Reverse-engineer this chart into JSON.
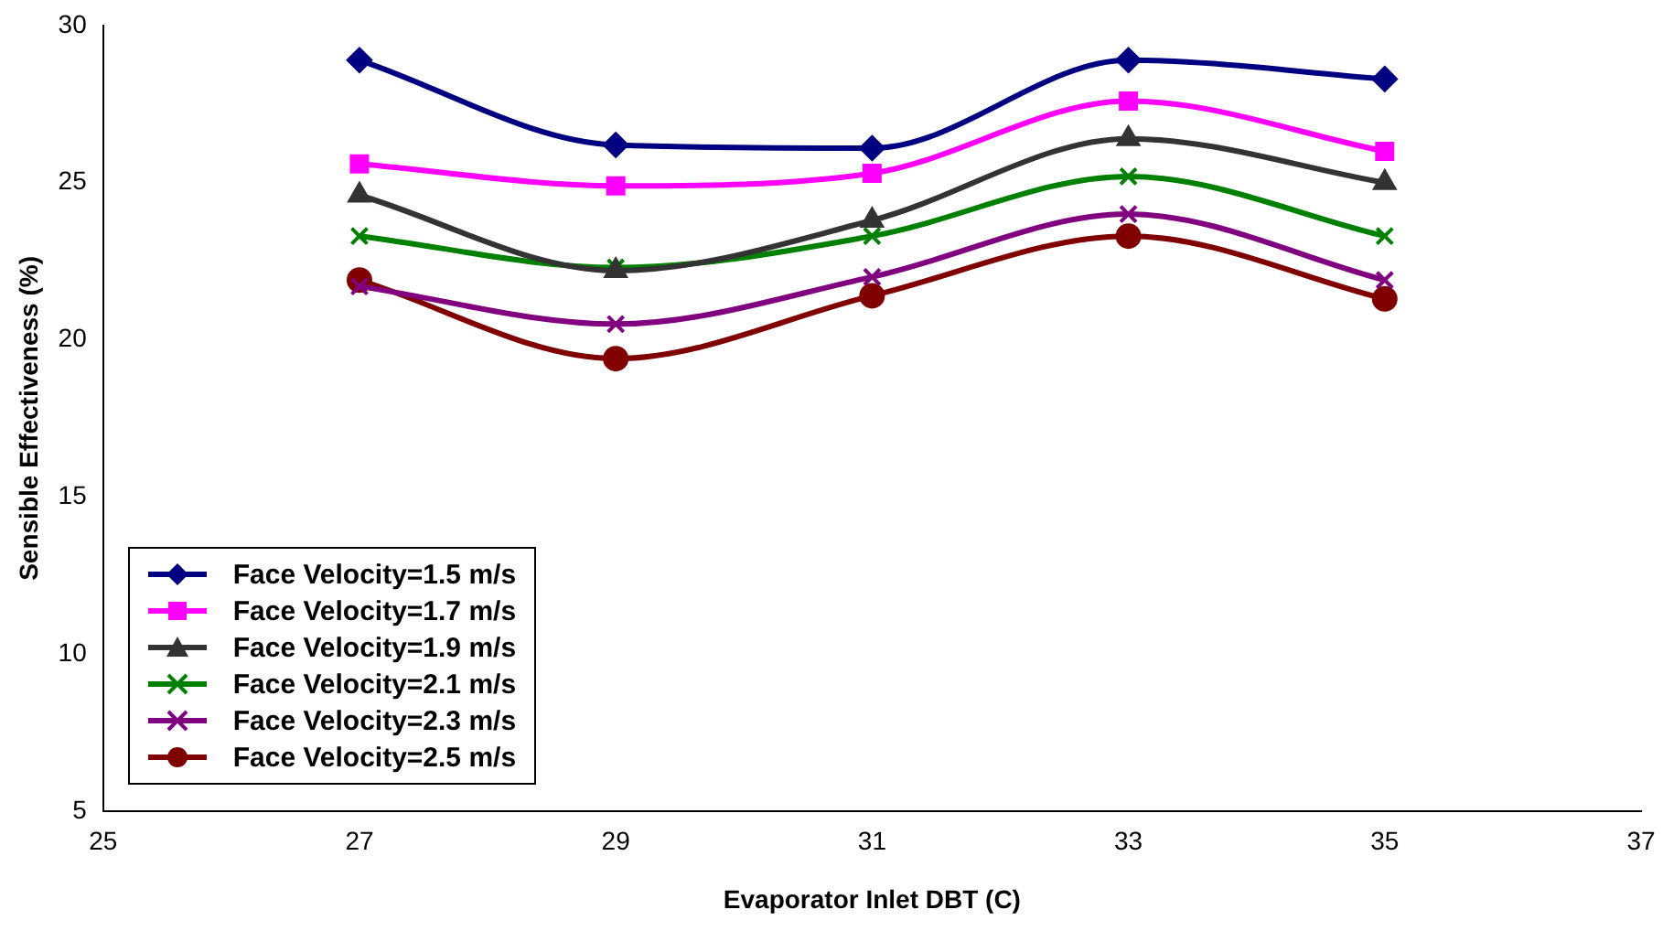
{
  "chart_data": {
    "type": "line",
    "xlabel": "Evaporator Inlet DBT (C)",
    "ylabel": "Sensible Effectiveness (%)",
    "xlim": [
      25,
      37
    ],
    "xticks": [
      25,
      27,
      29,
      31,
      33,
      35,
      37
    ],
    "ylim": [
      5,
      30
    ],
    "yticks": [
      5,
      10,
      15,
      20,
      25,
      30
    ],
    "grid": false,
    "legend": "bottom left",
    "line_style": "solid",
    "x": [
      27,
      29,
      31,
      33,
      35
    ],
    "series": [
      {
        "name": "Face Velocity=1.5 m/s",
        "color": "#000080",
        "marker": "diamond",
        "values": [
          28.9,
          26.2,
          26.1,
          28.9,
          28.3
        ]
      },
      {
        "name": "Face Velocity=1.7 m/s",
        "color": "#ff00ff",
        "marker": "square",
        "values": [
          25.6,
          24.9,
          25.3,
          27.6,
          26.0
        ]
      },
      {
        "name": "Face Velocity=1.9 m/s",
        "color": "#333333",
        "marker": "triangle",
        "values": [
          24.6,
          22.2,
          23.8,
          26.4,
          25.0
        ]
      },
      {
        "name": "Face Velocity=2.1 m/s",
        "color": "#008000",
        "marker": "cross",
        "values": [
          23.3,
          22.3,
          23.3,
          25.2,
          23.3
        ]
      },
      {
        "name": "Face Velocity=2.3 m/s",
        "color": "#800080",
        "marker": "cross",
        "values": [
          21.7,
          20.5,
          22.0,
          24.0,
          21.9
        ]
      },
      {
        "name": "Face Velocity=2.5 m/s",
        "color": "#800000",
        "marker": "circle",
        "values": [
          21.9,
          19.4,
          21.4,
          23.3,
          21.3
        ]
      }
    ]
  }
}
